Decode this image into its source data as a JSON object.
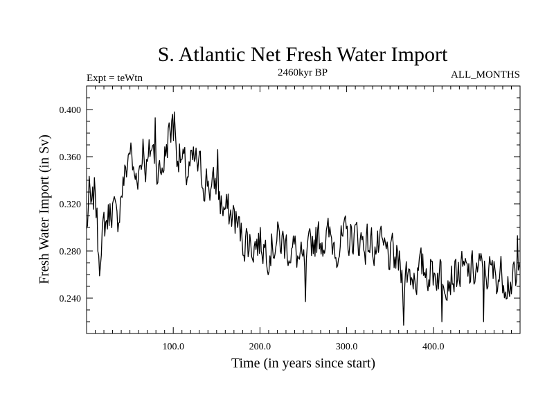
{
  "chart_data": {
    "type": "line",
    "title": "S. Atlantic Net Fresh Water Import",
    "subtitle": "2460kyr BP",
    "left_label": "Expt = teWtn",
    "right_label": "ALL_MONTHS",
    "xlabel": "Time (in years since start)",
    "ylabel": "Fresh Water Import (in Sv)",
    "xlim": [
      0,
      500
    ],
    "ylim": [
      0.21,
      0.42
    ],
    "x_ticks": [
      100,
      200,
      300,
      400
    ],
    "x_tick_labels": [
      "100.0",
      "200.0",
      "300.0",
      "400.0"
    ],
    "y_ticks": [
      0.24,
      0.28,
      0.32,
      0.36,
      0.4
    ],
    "y_tick_labels": [
      "0.240",
      "0.280",
      "0.320",
      "0.360",
      "0.400"
    ],
    "grid": false,
    "series": [
      {
        "name": "Net Fresh Water Import",
        "color": "#000000",
        "anchor_x": [
          0,
          3,
          6,
          10,
          13,
          16,
          20,
          25,
          30,
          35,
          40,
          45,
          50,
          55,
          60,
          65,
          70,
          75,
          80,
          85,
          90,
          95,
          100,
          105,
          110,
          115,
          120,
          125,
          130,
          135,
          140,
          145,
          150,
          155,
          160,
          165,
          170,
          175,
          180,
          185,
          190,
          200,
          210,
          220,
          230,
          240,
          250,
          255,
          260,
          270,
          280,
          290,
          300,
          310,
          320,
          330,
          340,
          350,
          360,
          365,
          370,
          380,
          390,
          400,
          410,
          420,
          430,
          440,
          450,
          460,
          470,
          480,
          490,
          495,
          500
        ],
        "anchor_y": [
          0.296,
          0.328,
          0.31,
          0.335,
          0.29,
          0.27,
          0.3,
          0.31,
          0.32,
          0.3,
          0.33,
          0.345,
          0.37,
          0.34,
          0.35,
          0.36,
          0.35,
          0.37,
          0.355,
          0.345,
          0.36,
          0.38,
          0.385,
          0.365,
          0.355,
          0.345,
          0.35,
          0.355,
          0.35,
          0.34,
          0.34,
          0.33,
          0.34,
          0.32,
          0.315,
          0.31,
          0.31,
          0.3,
          0.29,
          0.29,
          0.285,
          0.288,
          0.282,
          0.29,
          0.285,
          0.28,
          0.265,
          0.27,
          0.29,
          0.292,
          0.29,
          0.285,
          0.29,
          0.292,
          0.288,
          0.285,
          0.28,
          0.275,
          0.27,
          0.255,
          0.262,
          0.26,
          0.265,
          0.262,
          0.262,
          0.26,
          0.262,
          0.26,
          0.264,
          0.262,
          0.26,
          0.26,
          0.255,
          0.25,
          0.26
        ],
        "noise_amplitude": 0.016,
        "n_points": 500,
        "seed": 7,
        "extremes": [
          {
            "x": 101,
            "y": 0.398
          },
          {
            "x": 99,
            "y": 0.396
          },
          {
            "x": 79,
            "y": 0.393
          },
          {
            "x": 65,
            "y": 0.375
          },
          {
            "x": 151,
            "y": 0.366
          },
          {
            "x": 16,
            "y": 0.268
          },
          {
            "x": 253,
            "y": 0.237
          },
          {
            "x": 366,
            "y": 0.217
          },
          {
            "x": 410,
            "y": 0.22
          },
          {
            "x": 458,
            "y": 0.22
          },
          {
            "x": 497,
            "y": 0.293
          }
        ]
      }
    ]
  }
}
